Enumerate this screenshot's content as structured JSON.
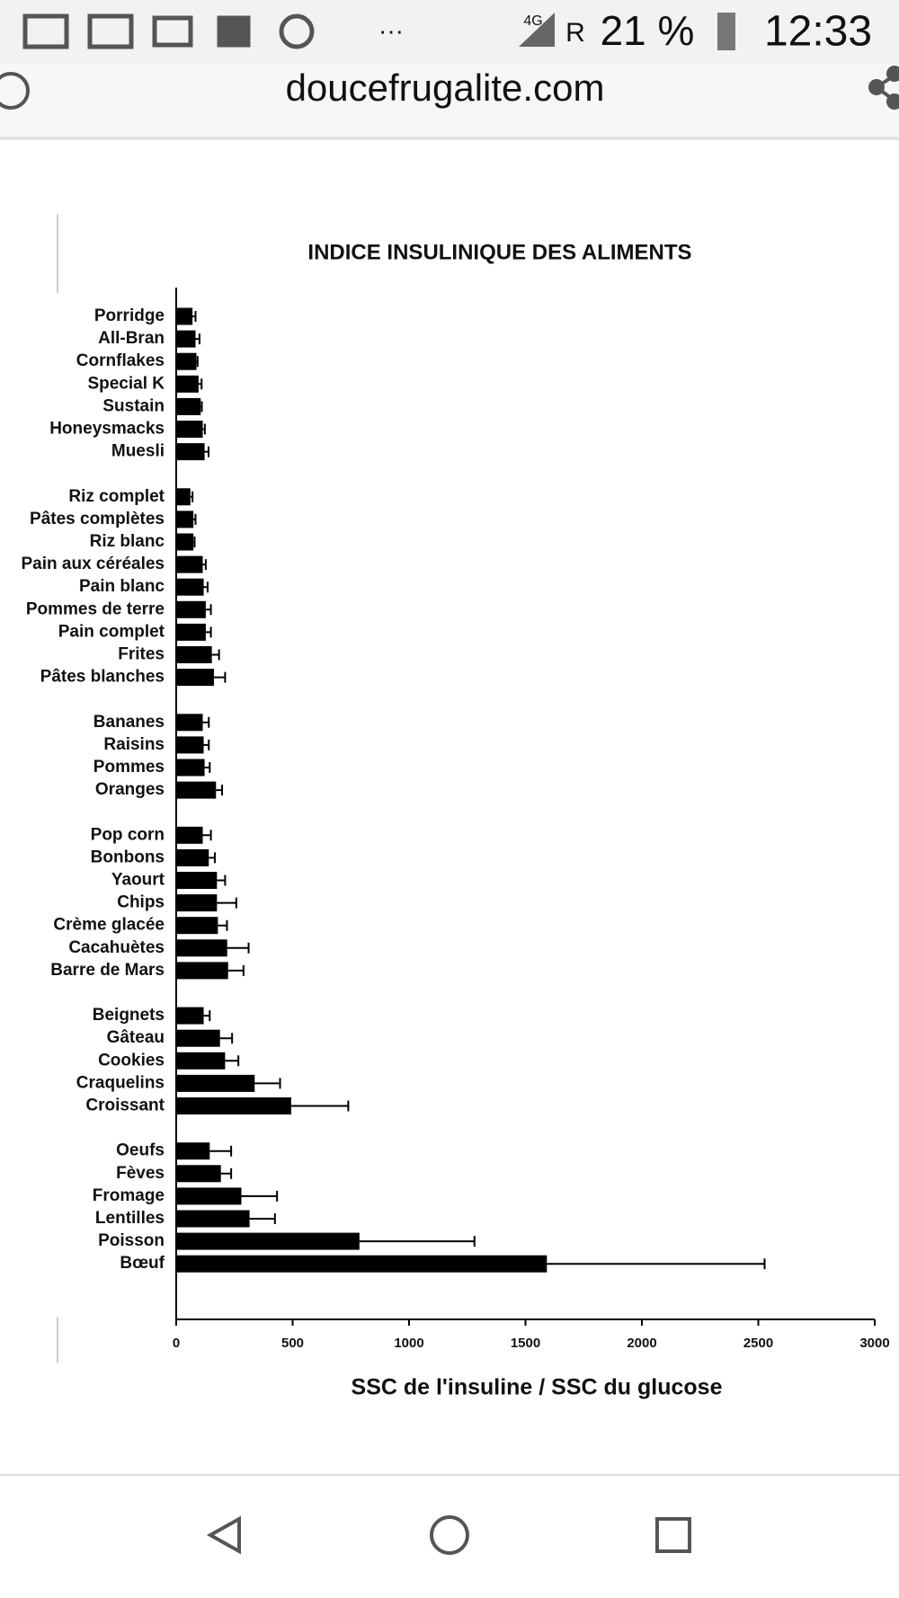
{
  "status_bar": {
    "network": "4G",
    "roaming": "R",
    "battery": "21 %",
    "time": "12:33",
    "more": "···"
  },
  "browser": {
    "url": "doucefrugalite.com"
  },
  "chart_data": {
    "type": "bar",
    "orientation": "horizontal",
    "title": "INDICE INSULINIQUE DES ALIMENTS",
    "x_label": "SSC de l'insuline / SSC du glucose",
    "categories": [
      "Porridge",
      "All-Bran",
      "Cornflakes",
      "Special K",
      "Sustain",
      "Honeysmacks",
      "Muesli",
      "Riz complet",
      "Pâtes complètes",
      "Riz blanc",
      "Pain aux céréales",
      "Pain blanc",
      "Pommes de terre",
      "Pain complet",
      "Frites",
      "Pâtes blanches",
      "Bananes",
      "Raisins",
      "Pommes",
      "Oranges",
      "Pop corn",
      "Bonbons",
      "Yaourt",
      "Chips",
      "Crème glacée",
      "Cacahuètes",
      "Barre de Mars",
      "Beignets",
      "Gâteau",
      "Cookies",
      "Craquelins",
      "Croissant",
      "Oeufs",
      "Fèves",
      "Fromage",
      "Lentilles",
      "Poisson",
      "Bœuf"
    ],
    "values": [
      70,
      83,
      87,
      96,
      105,
      114,
      122,
      61,
      74,
      74,
      114,
      118,
      127,
      127,
      153,
      162,
      114,
      118,
      122,
      171,
      114,
      140,
      175,
      175,
      179,
      219,
      223,
      118,
      188,
      210,
      337,
      494,
      144,
      192,
      280,
      315,
      787,
      1592
    ],
    "errors": [
      13,
      17,
      5,
      13,
      5,
      9,
      17,
      9,
      9,
      5,
      13,
      17,
      22,
      22,
      31,
      48,
      26,
      22,
      22,
      26,
      35,
      26,
      35,
      83,
      39,
      92,
      66,
      26,
      52,
      57,
      109,
      245,
      92,
      44,
      153,
      109,
      494,
      935
    ],
    "color": "#000000",
    "xlim": [
      0,
      3000
    ],
    "xticks": [
      0,
      500,
      1000,
      1500,
      2000,
      2500,
      3000
    ]
  }
}
